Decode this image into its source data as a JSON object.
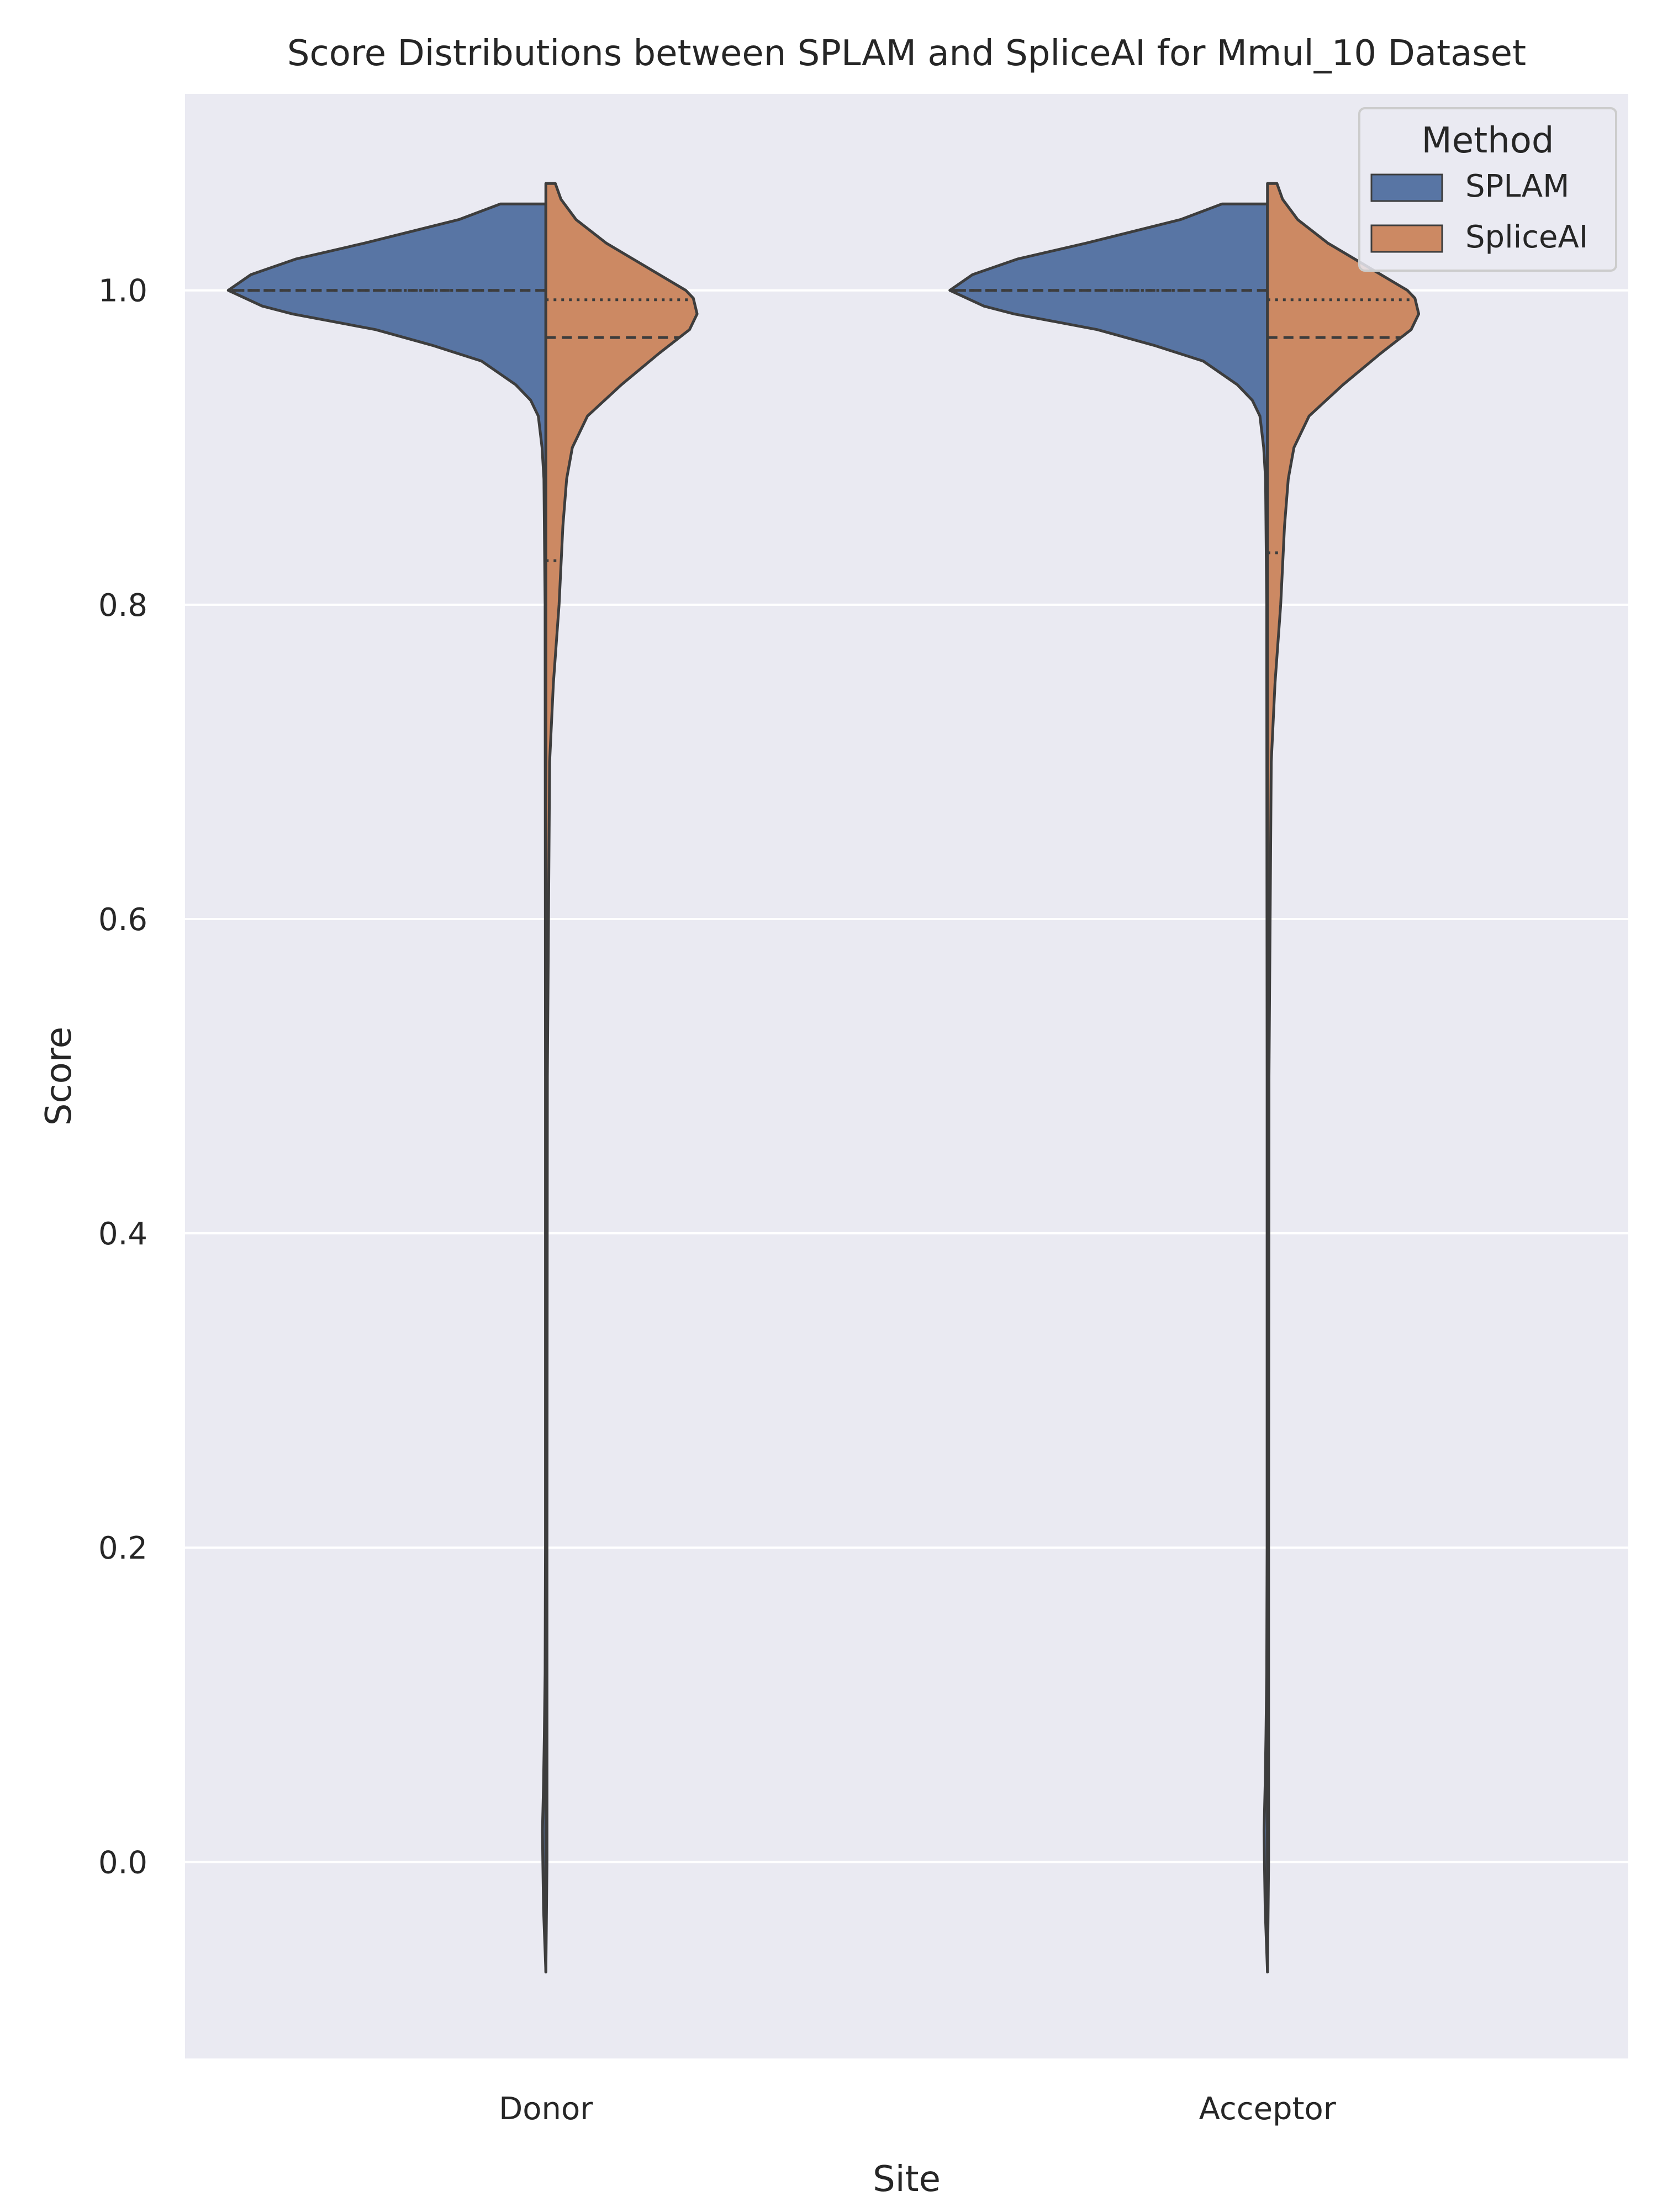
{
  "chart_data": {
    "type": "violin",
    "title": "Score Distributions between SPLAM and SpliceAI for Mmul_10 Dataset",
    "xlabel": "Site",
    "ylabel": "Score",
    "categories": [
      "Donor",
      "Acceptor"
    ],
    "ylim": [
      -0.125,
      1.125
    ],
    "y_ticks": [
      0.0,
      0.2,
      0.4,
      0.6,
      0.8,
      1.0
    ],
    "y_tick_labels": [
      "0.0",
      "0.2",
      "0.4",
      "0.6",
      "0.8",
      "1.0"
    ],
    "grid": true,
    "split": true,
    "legend": {
      "title": "Method",
      "position": "top-right",
      "entries": [
        "SPLAM",
        "SpliceAI"
      ]
    },
    "colors": {
      "SPLAM": "#5875a4",
      "SpliceAI": "#cc8963",
      "background": "#eaeaf2",
      "grid": "#ffffff",
      "outline": "#3d3d3d"
    },
    "series": [
      {
        "name": "SPLAM",
        "violins": [
          {
            "category": "Donor",
            "density": [
              [
                -0.07,
                0.0
              ],
              [
                -0.05,
                0.003
              ],
              [
                -0.03,
                0.006
              ],
              [
                0.0,
                0.008
              ],
              [
                0.02,
                0.009
              ],
              [
                0.05,
                0.006
              ],
              [
                0.08,
                0.004
              ],
              [
                0.12,
                0.002
              ],
              [
                0.2,
                0.001
              ],
              [
                0.5,
                0.001
              ],
              [
                0.8,
                0.002
              ],
              [
                0.88,
                0.005
              ],
              [
                0.9,
                0.01
              ],
              [
                0.92,
                0.02
              ],
              [
                0.93,
                0.04
              ],
              [
                0.94,
                0.08
              ],
              [
                0.955,
                0.17
              ],
              [
                0.965,
                0.3
              ],
              [
                0.975,
                0.45
              ],
              [
                0.985,
                0.67
              ],
              [
                0.99,
                0.75
              ],
              [
                1.0,
                0.84
              ],
              [
                1.01,
                0.78
              ],
              [
                1.02,
                0.66
              ],
              [
                1.03,
                0.48
              ],
              [
                1.045,
                0.23
              ],
              [
                1.055,
                0.12
              ],
              [
                1.055,
                0.0
              ]
            ],
            "quartiles": [
              1.0,
              1.0,
              1.0
            ]
          },
          {
            "category": "Acceptor",
            "density": [
              [
                -0.07,
                0.0
              ],
              [
                -0.05,
                0.003
              ],
              [
                -0.03,
                0.006
              ],
              [
                0.0,
                0.008
              ],
              [
                0.02,
                0.009
              ],
              [
                0.05,
                0.006
              ],
              [
                0.08,
                0.004
              ],
              [
                0.12,
                0.002
              ],
              [
                0.2,
                0.001
              ],
              [
                0.5,
                0.001
              ],
              [
                0.8,
                0.002
              ],
              [
                0.88,
                0.005
              ],
              [
                0.9,
                0.01
              ],
              [
                0.92,
                0.02
              ],
              [
                0.93,
                0.04
              ],
              [
                0.94,
                0.08
              ],
              [
                0.955,
                0.17
              ],
              [
                0.965,
                0.3
              ],
              [
                0.975,
                0.45
              ],
              [
                0.985,
                0.67
              ],
              [
                0.99,
                0.75
              ],
              [
                1.0,
                0.84
              ],
              [
                1.01,
                0.78
              ],
              [
                1.02,
                0.66
              ],
              [
                1.03,
                0.48
              ],
              [
                1.045,
                0.23
              ],
              [
                1.055,
                0.12
              ],
              [
                1.055,
                0.0
              ]
            ],
            "quartiles": [
              1.0,
              1.0,
              1.0
            ]
          }
        ]
      },
      {
        "name": "SpliceAI",
        "violins": [
          {
            "category": "Donor",
            "density": [
              [
                -0.07,
                0.0
              ],
              [
                0.0,
                0.003
              ],
              [
                0.2,
                0.003
              ],
              [
                0.5,
                0.004
              ],
              [
                0.7,
                0.01
              ],
              [
                0.75,
                0.02
              ],
              [
                0.8,
                0.035
              ],
              [
                0.85,
                0.045
              ],
              [
                0.88,
                0.055
              ],
              [
                0.9,
                0.07
              ],
              [
                0.92,
                0.11
              ],
              [
                0.94,
                0.2
              ],
              [
                0.96,
                0.3
              ],
              [
                0.975,
                0.38
              ],
              [
                0.985,
                0.4
              ],
              [
                0.995,
                0.39
              ],
              [
                1.0,
                0.37
              ],
              [
                1.01,
                0.3
              ],
              [
                1.03,
                0.16
              ],
              [
                1.045,
                0.08
              ],
              [
                1.058,
                0.04
              ],
              [
                1.068,
                0.025
              ],
              [
                1.068,
                0.0
              ]
            ],
            "quartiles": [
              0.828,
              0.97,
              0.994
            ]
          },
          {
            "category": "Acceptor",
            "density": [
              [
                -0.07,
                0.0
              ],
              [
                0.0,
                0.003
              ],
              [
                0.2,
                0.003
              ],
              [
                0.5,
                0.004
              ],
              [
                0.7,
                0.01
              ],
              [
                0.75,
                0.02
              ],
              [
                0.8,
                0.035
              ],
              [
                0.85,
                0.045
              ],
              [
                0.88,
                0.055
              ],
              [
                0.9,
                0.07
              ],
              [
                0.92,
                0.11
              ],
              [
                0.94,
                0.2
              ],
              [
                0.96,
                0.3
              ],
              [
                0.975,
                0.38
              ],
              [
                0.985,
                0.4
              ],
              [
                0.995,
                0.39
              ],
              [
                1.0,
                0.37
              ],
              [
                1.01,
                0.3
              ],
              [
                1.03,
                0.16
              ],
              [
                1.045,
                0.08
              ],
              [
                1.058,
                0.04
              ],
              [
                1.068,
                0.025
              ],
              [
                1.068,
                0.0
              ]
            ],
            "quartiles": [
              0.833,
              0.97,
              0.994
            ]
          }
        ]
      }
    ]
  }
}
